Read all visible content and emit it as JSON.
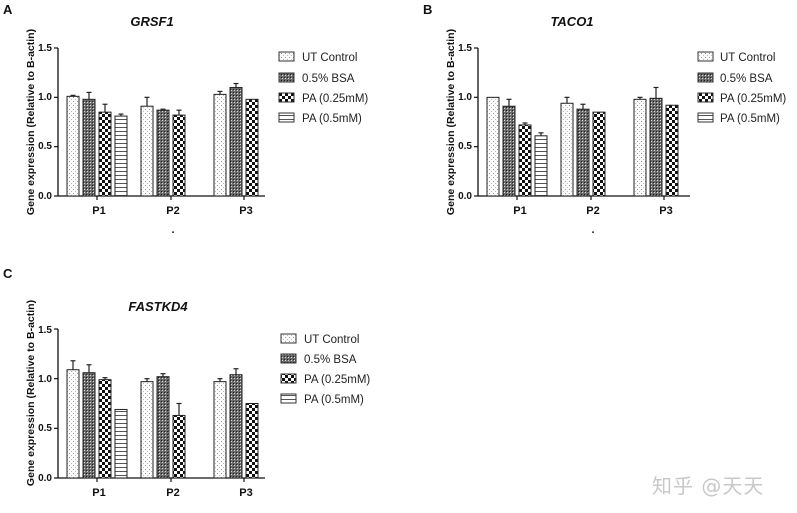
{
  "figure": {
    "watermark": "知乎 @天天",
    "colors": {
      "axis": "#111111",
      "bar_outline": "#222222",
      "background": "#ffffff",
      "watermark": "#c8c8c8"
    }
  },
  "chart_data": [
    {
      "panel": "A",
      "type": "bar",
      "title": "GRSF1",
      "xlabel": "",
      "xlabel_mark": ".",
      "ylabel": "Gene expression (Relative to B-actin)",
      "ylim": [
        0,
        1.5
      ],
      "yticks": [
        "0.0",
        "0.5",
        "1.0",
        "1.5"
      ],
      "categories": [
        "P1",
        "P2",
        "P3"
      ],
      "legend_position": "right",
      "series": [
        {
          "name": "UT Control",
          "pattern": "dots",
          "values": [
            1.01,
            0.91,
            1.03
          ],
          "errors": [
            0.01,
            0.09,
            0.03
          ]
        },
        {
          "name": "0.5% BSA",
          "pattern": "dense-grid",
          "values": [
            0.98,
            0.87,
            1.1
          ],
          "errors": [
            0.07,
            0.01,
            0.04
          ]
        },
        {
          "name": "PA (0.25mM)",
          "pattern": "checker",
          "values": [
            0.85,
            0.82,
            0.98
          ],
          "errors": [
            0.08,
            0.05,
            0.0
          ]
        },
        {
          "name": "PA (0.5mM)",
          "pattern": "hlines",
          "values": [
            0.81,
            null,
            null
          ],
          "errors": [
            0.02,
            null,
            null
          ]
        }
      ]
    },
    {
      "panel": "B",
      "type": "bar",
      "title": "TACO1",
      "xlabel": "",
      "xlabel_mark": ".",
      "ylabel": "Gene expression (Relative to B-actin)",
      "ylim": [
        0,
        1.5
      ],
      "yticks": [
        "0.0",
        "0.5",
        "1.0",
        "1.5"
      ],
      "categories": [
        "P1",
        "P2",
        "P3"
      ],
      "legend_position": "right",
      "series": [
        {
          "name": "UT Control",
          "pattern": "dots",
          "values": [
            1.0,
            0.94,
            0.98
          ],
          "errors": [
            0.0,
            0.06,
            0.02
          ]
        },
        {
          "name": "0.5% BSA",
          "pattern": "dense-grid",
          "values": [
            0.91,
            0.88,
            0.99
          ],
          "errors": [
            0.07,
            0.05,
            0.11
          ]
        },
        {
          "name": "PA (0.25mM)",
          "pattern": "checker",
          "values": [
            0.72,
            0.85,
            0.92
          ],
          "errors": [
            0.02,
            0.0,
            0.0
          ]
        },
        {
          "name": "PA (0.5mM)",
          "pattern": "hlines",
          "values": [
            0.61,
            null,
            null
          ],
          "errors": [
            0.03,
            null,
            null
          ]
        }
      ]
    },
    {
      "panel": "C",
      "type": "bar",
      "title": "FASTKD4",
      "xlabel": "",
      "xlabel_mark": "",
      "ylabel": "Gene expression (Relative to B-actin)",
      "ylim": [
        0,
        1.5
      ],
      "yticks": [
        "0.0",
        "0.5",
        "1.0",
        "1.5"
      ],
      "categories": [
        "P1",
        "P2",
        "P3"
      ],
      "legend_position": "right",
      "series": [
        {
          "name": "UT Control",
          "pattern": "dots",
          "values": [
            1.09,
            0.97,
            0.97
          ],
          "errors": [
            0.09,
            0.03,
            0.03
          ]
        },
        {
          "name": "0.5% BSA",
          "pattern": "dense-grid",
          "values": [
            1.06,
            1.02,
            1.04
          ],
          "errors": [
            0.08,
            0.03,
            0.06
          ]
        },
        {
          "name": "PA (0.25mM)",
          "pattern": "checker",
          "values": [
            0.99,
            0.63,
            0.75
          ],
          "errors": [
            0.02,
            0.12,
            0.0
          ]
        },
        {
          "name": "PA (0.5mM)",
          "pattern": "hlines",
          "values": [
            0.69,
            null,
            null
          ],
          "errors": [
            0.0,
            null,
            null
          ]
        }
      ]
    }
  ]
}
